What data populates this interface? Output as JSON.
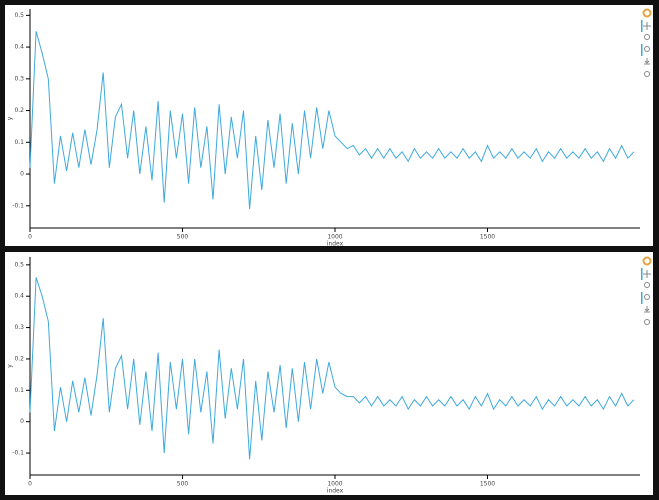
{
  "chart_data": [
    {
      "type": "line",
      "x_label": "index",
      "y_label": "y",
      "x": [
        0,
        20,
        40,
        60,
        80,
        100,
        120,
        140,
        160,
        180,
        200,
        220,
        240,
        260,
        280,
        300,
        320,
        340,
        360,
        380,
        400,
        420,
        440,
        460,
        480,
        500,
        520,
        540,
        560,
        580,
        600,
        620,
        640,
        660,
        680,
        700,
        720,
        740,
        760,
        780,
        800,
        820,
        840,
        860,
        880,
        900,
        920,
        940,
        960,
        980,
        1000,
        1020,
        1040,
        1060,
        1080,
        1100,
        1120,
        1140,
        1160,
        1180,
        1200,
        1220,
        1240,
        1260,
        1280,
        1300,
        1320,
        1340,
        1360,
        1380,
        1400,
        1420,
        1440,
        1460,
        1480,
        1500,
        1520,
        1540,
        1560,
        1580,
        1600,
        1620,
        1640,
        1660,
        1680,
        1700,
        1720,
        1740,
        1760,
        1780,
        1800,
        1820,
        1840,
        1860,
        1880,
        1900,
        1920,
        1940,
        1960,
        1980
      ],
      "series": [
        {
          "color": "#3fa9dc",
          "values": [
            0.02,
            0.45,
            0.38,
            0.3,
            -0.03,
            0.12,
            0.01,
            0.13,
            0.02,
            0.14,
            0.03,
            0.14,
            0.32,
            0.02,
            0.18,
            0.22,
            0.05,
            0.2,
            0.0,
            0.15,
            -0.02,
            0.23,
            -0.09,
            0.2,
            0.05,
            0.19,
            -0.03,
            0.21,
            0.02,
            0.15,
            -0.08,
            0.22,
            0.0,
            0.18,
            0.05,
            0.2,
            -0.11,
            0.12,
            -0.05,
            0.17,
            0.02,
            0.19,
            -0.03,
            0.16,
            0.0,
            0.2,
            0.05,
            0.21,
            0.08,
            0.2,
            0.12,
            0.1,
            0.08,
            0.09,
            0.06,
            0.08,
            0.05,
            0.08,
            0.05,
            0.08,
            0.05,
            0.07,
            0.04,
            0.08,
            0.05,
            0.07,
            0.05,
            0.08,
            0.05,
            0.07,
            0.05,
            0.08,
            0.05,
            0.07,
            0.04,
            0.09,
            0.05,
            0.07,
            0.05,
            0.08,
            0.05,
            0.07,
            0.05,
            0.08,
            0.04,
            0.07,
            0.05,
            0.08,
            0.05,
            0.07,
            0.05,
            0.08,
            0.05,
            0.07,
            0.04,
            0.08,
            0.05,
            0.09,
            0.05,
            0.07
          ]
        }
      ],
      "xlim": [
        0,
        2000
      ],
      "ylim": [
        -0.17,
        0.52
      ],
      "xticks": [
        0,
        500,
        1000,
        1500
      ],
      "yticks": [
        -0.1,
        0,
        0.1,
        0.2,
        0.3,
        0.4,
        0.5
      ]
    },
    {
      "type": "line",
      "x_label": "index",
      "y_label": "y",
      "x": [
        0,
        20,
        40,
        60,
        80,
        100,
        120,
        140,
        160,
        180,
        200,
        220,
        240,
        260,
        280,
        300,
        320,
        340,
        360,
        380,
        400,
        420,
        440,
        460,
        480,
        500,
        520,
        540,
        560,
        580,
        600,
        620,
        640,
        660,
        680,
        700,
        720,
        740,
        760,
        780,
        800,
        820,
        840,
        860,
        880,
        900,
        920,
        940,
        960,
        980,
        1000,
        1020,
        1040,
        1060,
        1080,
        1100,
        1120,
        1140,
        1160,
        1180,
        1200,
        1220,
        1240,
        1260,
        1280,
        1300,
        1320,
        1340,
        1360,
        1380,
        1400,
        1420,
        1440,
        1460,
        1480,
        1500,
        1520,
        1540,
        1560,
        1580,
        1600,
        1620,
        1640,
        1660,
        1680,
        1700,
        1720,
        1740,
        1760,
        1780,
        1800,
        1820,
        1840,
        1860,
        1880,
        1900,
        1920,
        1940,
        1960,
        1980
      ],
      "series": [
        {
          "color": "#3fa9dc",
          "values": [
            0.03,
            0.46,
            0.4,
            0.32,
            -0.03,
            0.11,
            0.0,
            0.13,
            0.03,
            0.14,
            0.02,
            0.15,
            0.33,
            0.03,
            0.17,
            0.21,
            0.04,
            0.2,
            -0.01,
            0.16,
            -0.03,
            0.22,
            -0.1,
            0.19,
            0.04,
            0.2,
            -0.04,
            0.2,
            0.03,
            0.16,
            -0.07,
            0.23,
            0.01,
            0.17,
            0.04,
            0.2,
            -0.12,
            0.13,
            -0.06,
            0.16,
            0.03,
            0.18,
            -0.02,
            0.17,
            0.0,
            0.19,
            0.04,
            0.2,
            0.09,
            0.19,
            0.11,
            0.09,
            0.08,
            0.08,
            0.06,
            0.08,
            0.05,
            0.08,
            0.05,
            0.07,
            0.05,
            0.08,
            0.04,
            0.07,
            0.05,
            0.08,
            0.05,
            0.07,
            0.05,
            0.08,
            0.05,
            0.07,
            0.04,
            0.08,
            0.05,
            0.09,
            0.04,
            0.07,
            0.05,
            0.08,
            0.05,
            0.07,
            0.05,
            0.08,
            0.04,
            0.07,
            0.05,
            0.08,
            0.05,
            0.07,
            0.05,
            0.08,
            0.05,
            0.07,
            0.04,
            0.08,
            0.05,
            0.09,
            0.05,
            0.07
          ]
        }
      ],
      "xlim": [
        0,
        2000
      ],
      "ylim": [
        -0.17,
        0.525
      ],
      "xticks": [
        0,
        500,
        1000,
        1500
      ],
      "yticks": [
        -0.1,
        0,
        0.1,
        0.2,
        0.3,
        0.4,
        0.5
      ]
    }
  ]
}
